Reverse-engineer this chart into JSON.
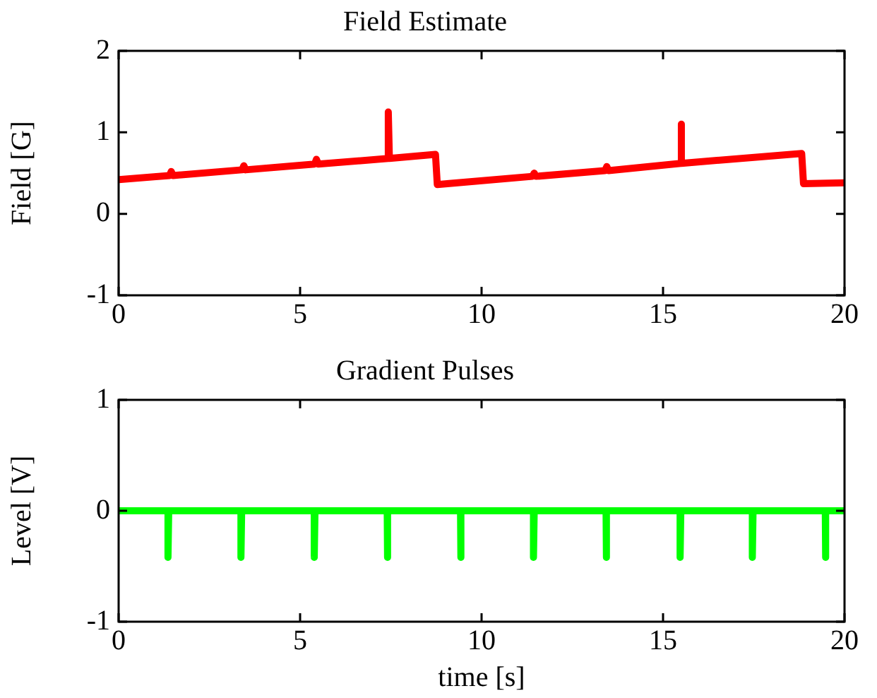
{
  "chart_data": [
    {
      "type": "line",
      "title": "Field Estimate",
      "ylabel": "Field [G]",
      "xlim": [
        0,
        20
      ],
      "xticks": [
        0,
        5,
        10,
        15,
        20
      ],
      "ylim": [
        -1,
        2
      ],
      "yticks": [
        -1,
        0,
        1,
        2
      ],
      "series": [
        {
          "color": "#ff0000",
          "x": [
            0,
            1.4,
            1.45,
            1.5,
            3.4,
            3.45,
            3.5,
            5.4,
            5.45,
            5.5,
            7.43,
            7.43,
            7.46,
            8.73,
            8.78,
            11.4,
            11.45,
            11.5,
            13.4,
            13.45,
            13.5,
            15.49,
            15.49,
            15.52,
            18.82,
            18.87,
            20
          ],
          "values": [
            0.42,
            0.47,
            0.52,
            0.47,
            0.54,
            0.59,
            0.54,
            0.61,
            0.67,
            0.61,
            0.68,
            1.25,
            0.68,
            0.73,
            0.36,
            0.46,
            0.5,
            0.46,
            0.53,
            0.58,
            0.53,
            0.62,
            1.1,
            0.62,
            0.74,
            0.37,
            0.38
          ]
        }
      ]
    },
    {
      "type": "line",
      "title": "Gradient Pulses",
      "xlabel": "time [s]",
      "ylabel": "Level [V]",
      "xlim": [
        0,
        20
      ],
      "xticks": [
        0,
        5,
        10,
        15,
        20
      ],
      "ylim": [
        -1,
        1
      ],
      "yticks": [
        -1,
        0,
        1
      ],
      "series": [
        {
          "color": "#00ff00",
          "x": [
            0,
            1.36,
            1.36,
            1.38,
            3.37,
            3.37,
            3.39,
            5.39,
            5.39,
            5.41,
            7.4,
            7.4,
            7.42,
            9.42,
            9.42,
            9.44,
            11.43,
            11.43,
            11.45,
            13.43,
            13.43,
            13.45,
            15.47,
            15.47,
            15.49,
            17.46,
            17.46,
            17.48,
            19.47,
            19.47,
            19.49,
            20
          ],
          "values": [
            0,
            0,
            -0.42,
            0,
            0,
            -0.42,
            0,
            0,
            -0.42,
            0,
            0,
            -0.42,
            0,
            0,
            -0.42,
            0,
            0,
            -0.42,
            0,
            0,
            -0.42,
            0,
            0,
            -0.42,
            0,
            0,
            -0.42,
            0,
            0,
            -0.42,
            0,
            0
          ]
        }
      ]
    }
  ]
}
